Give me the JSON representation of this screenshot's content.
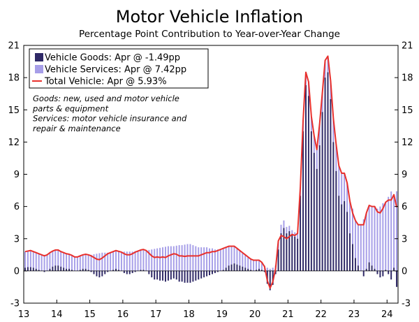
{
  "chart_data": {
    "type": "bar",
    "title": "Motor Vehicle Inflation",
    "subtitle": "Percentage Point Contribution to Year-over-Year Change",
    "ylim": [
      -3,
      21
    ],
    "yticks": [
      "21",
      "18",
      "15",
      "12",
      "9",
      "6",
      "3",
      "0",
      "-3"
    ],
    "xticks": [
      "13",
      "14",
      "15",
      "16",
      "17",
      "18",
      "19",
      "20",
      "21",
      "22",
      "23",
      "24"
    ],
    "x_start": "2013-01",
    "x_end": "2024-04",
    "legend": [
      {
        "name": "Vehicle Goods: Apr @ -1.49pp",
        "color": "#2e2866",
        "kind": "bar"
      },
      {
        "name": "Vehicle Services: Apr @ 7.42pp",
        "color": "#a69ee8",
        "kind": "bar"
      },
      {
        "name": "Total Vehicle: Apr @ 5.93%",
        "color": "#e8302c",
        "kind": "line"
      }
    ],
    "notes": [
      "Goods: new, used and motor vehicle",
      "parts & equipment",
      "Services: motor vehicle insurance and",
      "repair & maintenance"
    ],
    "series": [
      {
        "name": "Vehicle Goods",
        "color": "#2e2866",
        "values": [
          0.3,
          0.35,
          0.35,
          0.3,
          0.2,
          0.1,
          0.0,
          -0.1,
          0.0,
          0.2,
          0.4,
          0.5,
          0.5,
          0.4,
          0.3,
          0.2,
          0.2,
          0.1,
          0.0,
          0.0,
          0.1,
          0.2,
          0.2,
          0.1,
          -0.1,
          -0.3,
          -0.5,
          -0.6,
          -0.5,
          -0.3,
          -0.1,
          0.0,
          0.1,
          0.2,
          0.1,
          0.0,
          -0.2,
          -0.3,
          -0.3,
          -0.2,
          -0.1,
          0.0,
          0.1,
          0.1,
          0.0,
          -0.3,
          -0.6,
          -0.8,
          -0.8,
          -0.9,
          -0.9,
          -1.0,
          -0.9,
          -0.8,
          -0.7,
          -0.8,
          -1.0,
          -1.0,
          -1.1,
          -1.1,
          -1.1,
          -1.0,
          -0.9,
          -0.8,
          -0.7,
          -0.6,
          -0.5,
          -0.4,
          -0.3,
          -0.2,
          -0.1,
          0.0,
          0.1,
          0.3,
          0.5,
          0.6,
          0.7,
          0.6,
          0.5,
          0.4,
          0.3,
          0.2,
          0.1,
          0.0,
          0.1,
          0.2,
          0.1,
          -0.1,
          -1.2,
          -1.8,
          -1.3,
          -0.3,
          2.0,
          3.5,
          4.0,
          3.5,
          3.7,
          3.4,
          3.2,
          3.0,
          7.0,
          13.0,
          17.3,
          16.3,
          13.0,
          11.0,
          9.5,
          11.7,
          14.8,
          18.0,
          18.5,
          16.0,
          12.0,
          9.3,
          7.0,
          6.2,
          6.5,
          5.5,
          3.5,
          2.5,
          1.2,
          0.5,
          0.0,
          -0.5,
          0.2,
          0.8,
          0.5,
          0.2,
          -0.3,
          -0.6,
          -0.5,
          0.1,
          -0.3,
          -0.8,
          0.3,
          -1.49
        ]
      },
      {
        "name": "Vehicle Services",
        "color": "#a69ee8",
        "values": [
          1.5,
          1.5,
          1.55,
          1.5,
          1.5,
          1.5,
          1.5,
          1.5,
          1.5,
          1.5,
          1.45,
          1.45,
          1.45,
          1.4,
          1.4,
          1.4,
          1.35,
          1.35,
          1.3,
          1.3,
          1.3,
          1.3,
          1.35,
          1.4,
          1.5,
          1.55,
          1.6,
          1.65,
          1.7,
          1.7,
          1.7,
          1.7,
          1.7,
          1.7,
          1.72,
          1.75,
          1.8,
          1.8,
          1.8,
          1.8,
          1.85,
          1.85,
          1.85,
          1.9,
          1.9,
          1.95,
          2.0,
          2.05,
          2.1,
          2.15,
          2.2,
          2.25,
          2.3,
          2.3,
          2.3,
          2.35,
          2.4,
          2.4,
          2.45,
          2.5,
          2.5,
          2.4,
          2.3,
          2.2,
          2.2,
          2.2,
          2.2,
          2.1,
          2.1,
          2.0,
          2.0,
          2.0,
          2.0,
          1.9,
          1.8,
          1.7,
          1.6,
          1.5,
          1.4,
          1.3,
          1.2,
          1.1,
          1.0,
          1.0,
          0.9,
          0.8,
          0.7,
          0.5,
          0.3,
          0.2,
          0.3,
          0.5,
          0.8,
          0.8,
          0.7,
          0.6,
          0.5,
          0.4,
          0.4,
          0.5,
          0.8,
          1.0,
          1.2,
          1.3,
          1.4,
          1.6,
          1.8,
          2.0,
          1.8,
          1.6,
          1.5,
          1.7,
          2.2,
          2.5,
          2.8,
          2.9,
          2.6,
          2.7,
          3.0,
          3.3,
          3.5,
          3.8,
          4.3,
          4.8,
          5.2,
          5.3,
          5.5,
          5.8,
          5.8,
          6.0,
          6.3,
          6.3,
          6.9,
          7.4,
          6.8,
          7.42
        ]
      },
      {
        "name": "Total Vehicle",
        "color": "#e8302c",
        "kind": "line",
        "values": [
          1.8,
          1.85,
          1.9,
          1.8,
          1.7,
          1.6,
          1.5,
          1.4,
          1.5,
          1.7,
          1.85,
          1.95,
          1.95,
          1.8,
          1.7,
          1.6,
          1.55,
          1.45,
          1.3,
          1.3,
          1.4,
          1.5,
          1.55,
          1.5,
          1.4,
          1.25,
          1.1,
          1.05,
          1.2,
          1.4,
          1.6,
          1.7,
          1.8,
          1.9,
          1.82,
          1.75,
          1.6,
          1.5,
          1.5,
          1.6,
          1.75,
          1.85,
          1.95,
          2.0,
          1.9,
          1.65,
          1.4,
          1.25,
          1.3,
          1.25,
          1.3,
          1.25,
          1.4,
          1.5,
          1.6,
          1.55,
          1.4,
          1.4,
          1.35,
          1.4,
          1.4,
          1.4,
          1.4,
          1.4,
          1.5,
          1.6,
          1.7,
          1.7,
          1.8,
          1.8,
          1.9,
          2.0,
          2.1,
          2.2,
          2.3,
          2.3,
          2.3,
          2.1,
          1.9,
          1.7,
          1.5,
          1.3,
          1.1,
          1.0,
          1.0,
          1.0,
          0.8,
          0.4,
          -0.9,
          -1.6,
          -1.0,
          0.2,
          2.8,
          3.3,
          3.2,
          3.0,
          3.2,
          3.4,
          3.3,
          3.5,
          7.8,
          14.0,
          18.5,
          17.6,
          14.4,
          12.6,
          11.3,
          13.7,
          16.6,
          19.6,
          20.0,
          17.7,
          14.2,
          11.8,
          9.8,
          9.1,
          9.1,
          8.2,
          6.5,
          5.4,
          4.7,
          4.3,
          4.3,
          4.3,
          5.4,
          6.1,
          6.0,
          6.0,
          5.5,
          5.4,
          5.8,
          6.4,
          6.6,
          6.6,
          7.1,
          5.93
        ]
      }
    ]
  }
}
